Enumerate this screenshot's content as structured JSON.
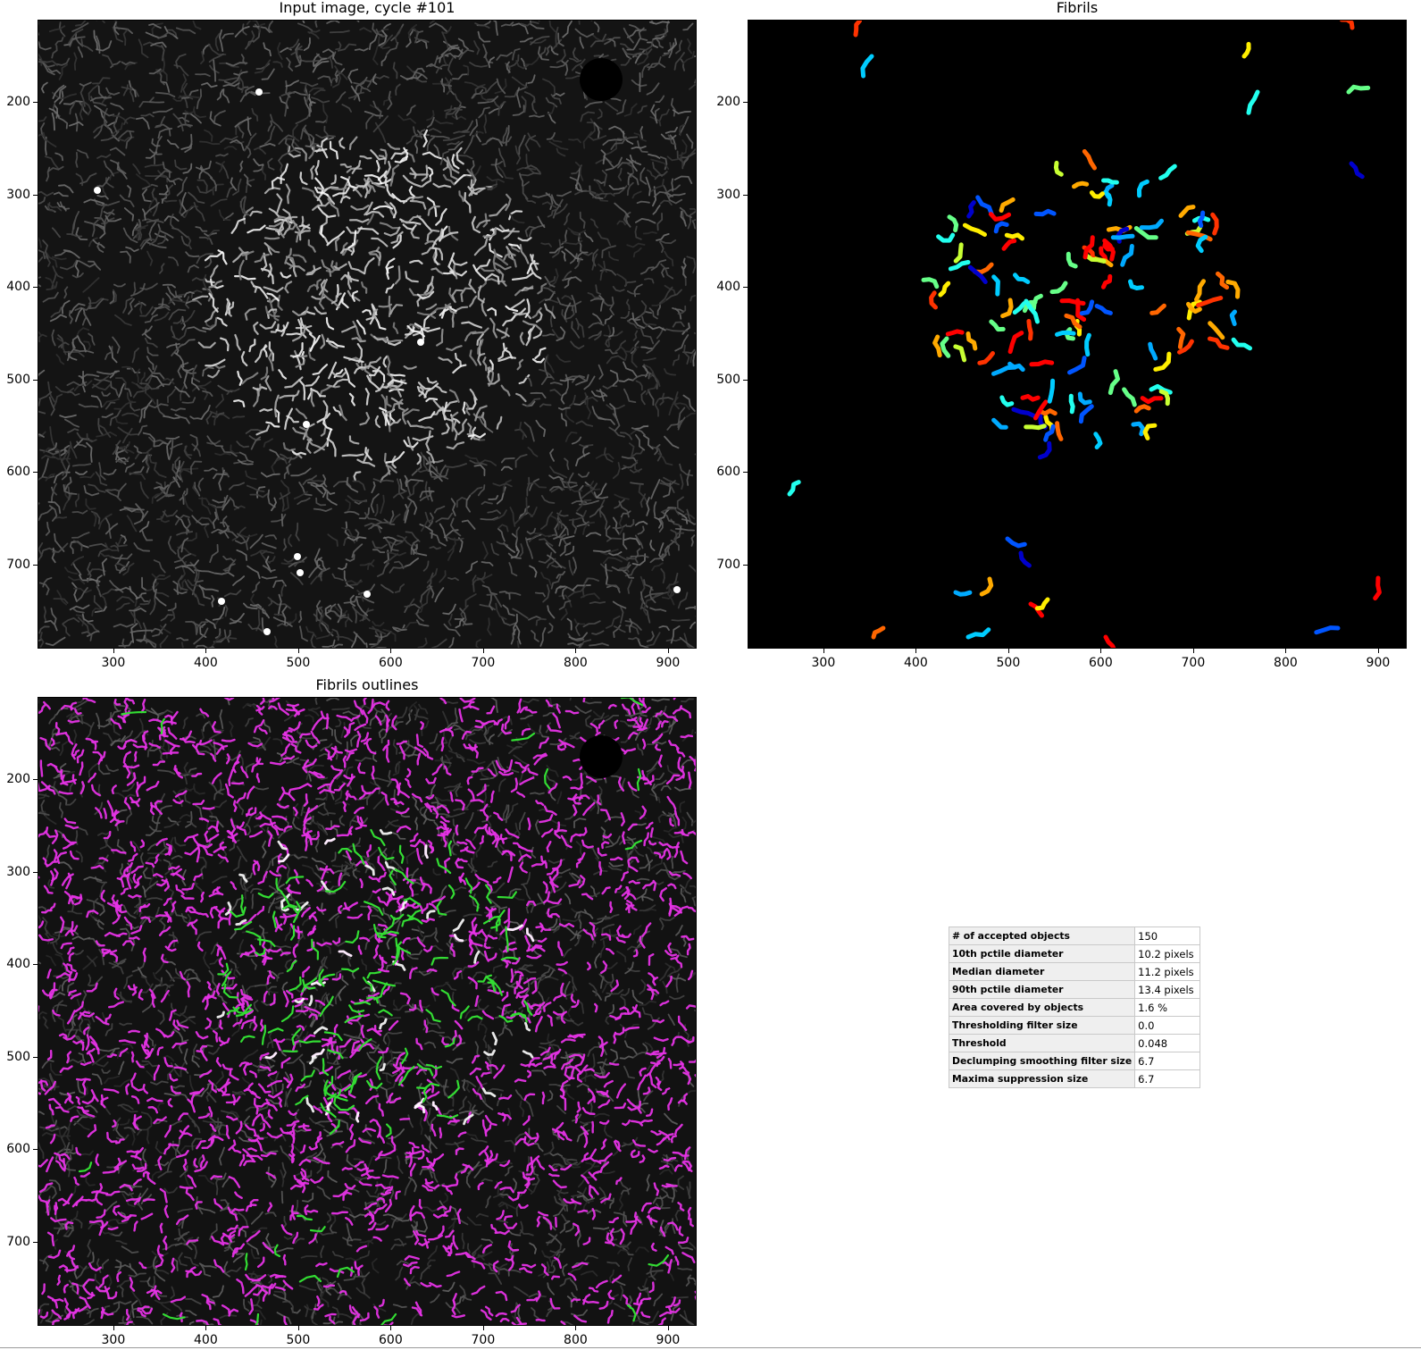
{
  "panels": {
    "input": {
      "title": "Input image, cycle #101"
    },
    "fibrils": {
      "title": "Fibrils"
    },
    "outlines": {
      "title": "Fibrils outlines"
    }
  },
  "axes": {
    "y_ticks": [
      "200",
      "300",
      "400",
      "500",
      "600",
      "700"
    ],
    "x_ticks": [
      "300",
      "400",
      "500",
      "600",
      "700",
      "800",
      "900"
    ],
    "y_tick_values": [
      200,
      300,
      400,
      500,
      600,
      700
    ],
    "x_tick_values": [
      300,
      400,
      500,
      600,
      700,
      800,
      900
    ],
    "x_range": [
      218,
      931
    ],
    "y_range": [
      111,
      791
    ]
  },
  "stats_table": {
    "rows": [
      {
        "label": "# of accepted objects",
        "value": "150"
      },
      {
        "label": "10th pctile diameter",
        "value": "10.2 pixels"
      },
      {
        "label": "Median diameter",
        "value": "11.2 pixels"
      },
      {
        "label": "90th pctile diameter",
        "value": "13.4 pixels"
      },
      {
        "label": "Area covered by objects",
        "value": "1.6 %"
      },
      {
        "label": "Thresholding filter size",
        "value": "0.0"
      },
      {
        "label": "Threshold",
        "value": "0.048"
      },
      {
        "label": "Declumping smoothing filter size",
        "value": "6.7"
      },
      {
        "label": "Maxima suppression size",
        "value": "6.7"
      }
    ]
  },
  "colors": {
    "outline_accepted": "#33dd33",
    "outline_rejected": "#e633e6",
    "background": "#000000"
  }
}
